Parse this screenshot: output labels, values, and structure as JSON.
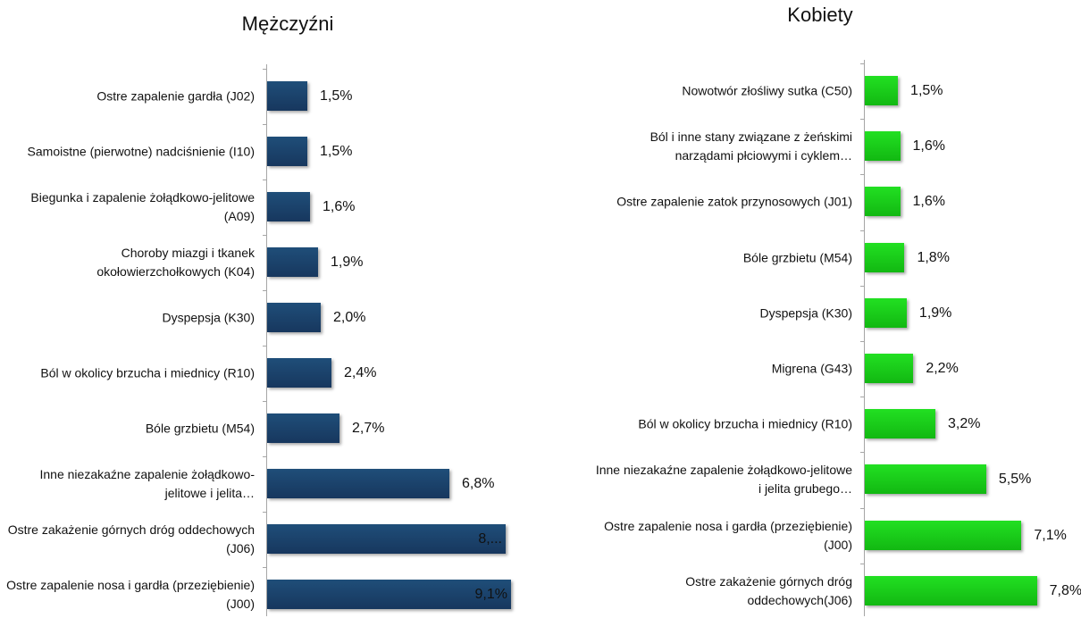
{
  "chart_data": [
    {
      "type": "bar",
      "orientation": "horizontal",
      "title": "Mężczyźni",
      "categories": [
        "Ostre zapalenie gardła (J02)",
        "Samoistne (pierwotne) nadciśnienie (I10)",
        "Biegunka i zapalenie żołądkowo-jelitowe (A09)",
        "Choroby miazgi i tkanek okołowierzchołkowych (K04)",
        "Dyspepsja (K30)",
        "Ból w okolicy brzucha i miednicy (R10)",
        "Bóle grzbietu (M54)",
        "Inne niezakaźne zapalenie żołądkowo-jelitowe i jelita…",
        "Ostre zakażenie górnych dróg oddechowych (J06)",
        "Ostre zapalenie nosa i gardła (przeziębienie) (J00)"
      ],
      "values": [
        1.5,
        1.5,
        1.6,
        1.9,
        2.0,
        2.4,
        2.7,
        6.8,
        8.9,
        9.1
      ],
      "value_labels": [
        "1,5%",
        "1,5%",
        "1,6%",
        "1,9%",
        "2,0%",
        "2,4%",
        "2,7%",
        "6,8%",
        "8,...",
        "9,1%"
      ],
      "color": "#1f4e79",
      "xlim": [
        0,
        10
      ]
    },
    {
      "type": "bar",
      "orientation": "horizontal",
      "title": "Kobiety",
      "categories": [
        "Nowotwór złośliwy sutka (C50)",
        "Ból i inne stany związane z żeńskimi narządami płciowymi i cyklem…",
        "Ostre zapalenie zatok przynosowych (J01)",
        "Bóle grzbietu (M54)",
        "Dyspepsja (K30)",
        "Migrena (G43)",
        "Ból w okolicy brzucha i miednicy (R10)",
        "Inne niezakaźne zapalenie żołądkowo-jelitowe i jelita grubego…",
        "Ostre zapalenie nosa i gardła (przeziębienie) (J00)",
        "Ostre zakażenie górnych dróg oddechowych(J06)"
      ],
      "values": [
        1.5,
        1.6,
        1.6,
        1.8,
        1.9,
        2.2,
        3.2,
        5.5,
        7.1,
        7.8
      ],
      "value_labels": [
        "1,5%",
        "1,6%",
        "1,6%",
        "1,8%",
        "1,9%",
        "2,2%",
        "3,2%",
        "5,5%",
        "7,1%",
        "7,8%"
      ],
      "color": "#22e022",
      "xlim": [
        0,
        10
      ]
    }
  ]
}
